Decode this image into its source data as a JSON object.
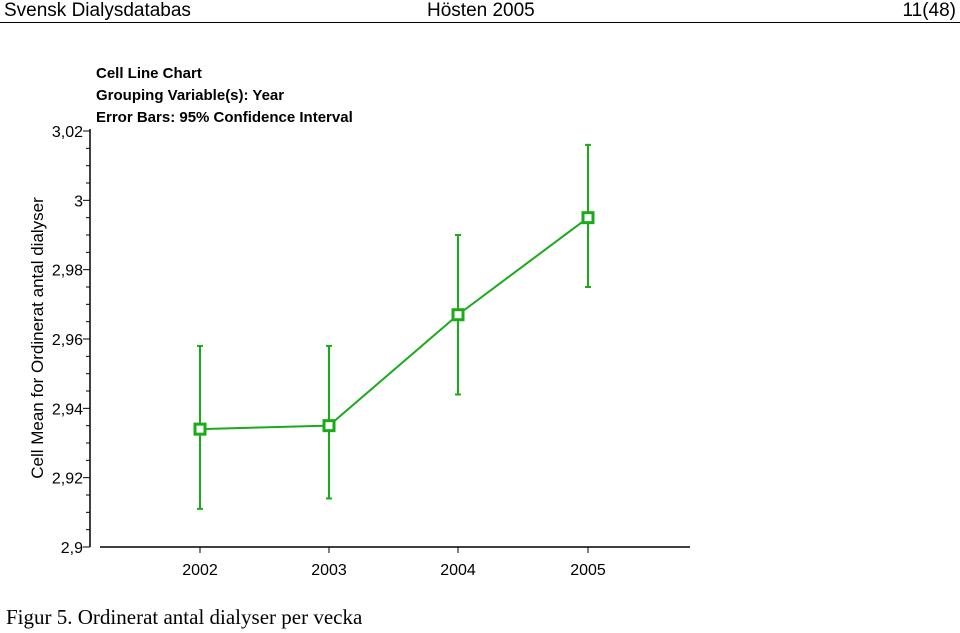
{
  "header": {
    "left": "Svensk Dialysdatabas",
    "center": "Hösten 2005",
    "right": "11(48)"
  },
  "chart_data": {
    "type": "line",
    "title_lines": [
      "Cell Line Chart",
      "Grouping Variable(s): Year",
      "Error Bars: 95% Confidence Interval"
    ],
    "xlabel": "",
    "ylabel": "Cell Mean for Ordinerat antal dialyser",
    "categories": [
      "2002",
      "2003",
      "2004",
      "2005"
    ],
    "ylim": [
      2.9,
      3.02
    ],
    "yticks": [
      2.9,
      2.92,
      2.94,
      2.96,
      2.98,
      3,
      3.02
    ],
    "ytick_labels": [
      "2,9",
      "2,92",
      "2,94",
      "2,96",
      "2,98",
      "3",
      "3,02"
    ],
    "series": [
      {
        "values": [
          2.934,
          2.935,
          2.967,
          2.995
        ],
        "ci_low": [
          2.911,
          2.914,
          2.944,
          2.975
        ],
        "ci_high": [
          2.958,
          2.958,
          2.99,
          3.016
        ],
        "color": "#1aaa1a"
      }
    ],
    "grid": false,
    "legend": "none"
  },
  "caption": "Figur 5. Ordinerat antal dialyser per vecka"
}
